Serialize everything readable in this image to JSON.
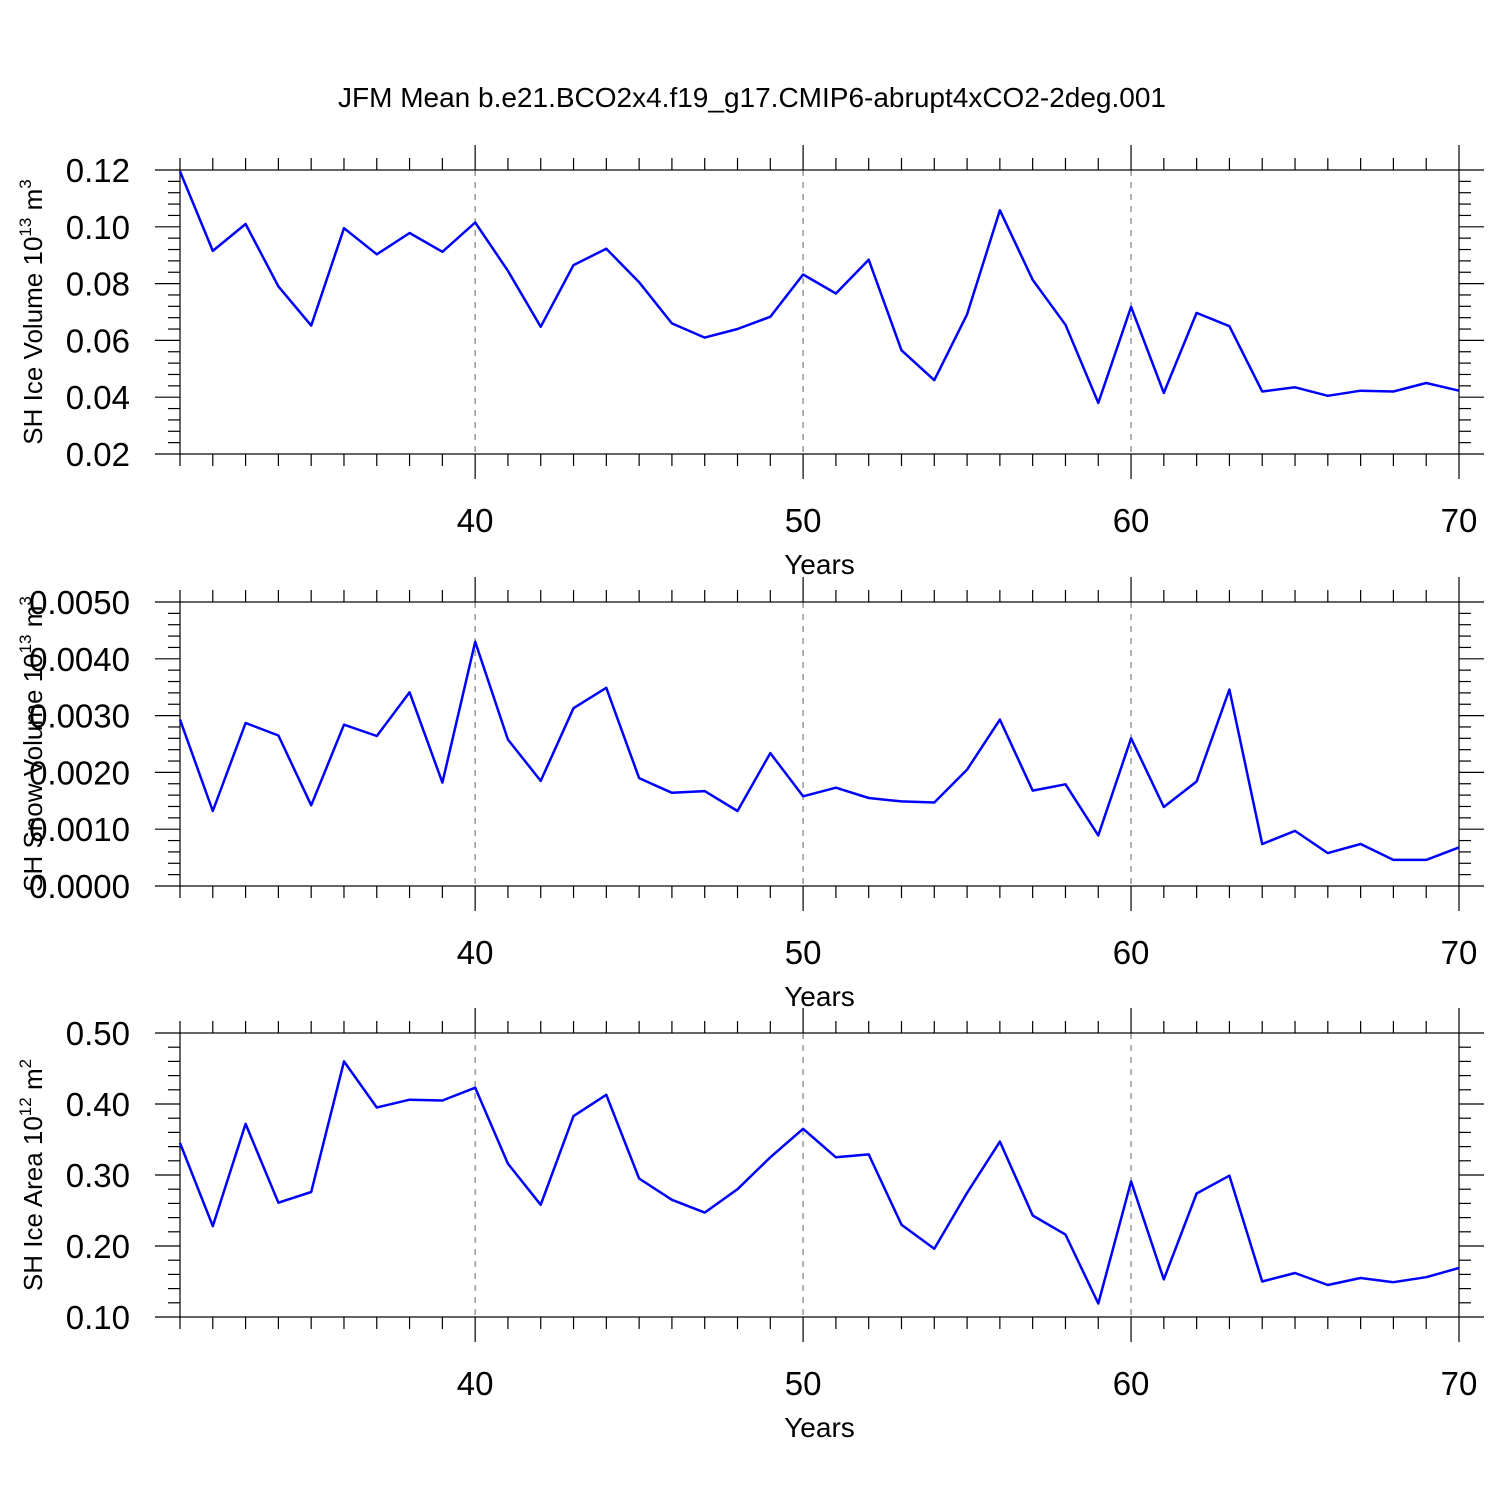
{
  "figure": {
    "title": "JFM Mean b.e21.BCO2x4.f19_g17.CMIP6-abrupt4xCO2-2deg.001",
    "series_color": "#0000ff",
    "grid_color": "#999999"
  },
  "chart_data": [
    {
      "type": "line",
      "name": "ice-volume",
      "ylabel": "SH Ice Volume 10",
      "ylabel_exp": "13",
      "ylabel_unit": " m",
      "ylabel_unit_exp": "3",
      "xlabel": "Years",
      "xlim": [
        31,
        70
      ],
      "ylim": [
        0.02,
        0.12
      ],
      "x_ticks": [
        40,
        50,
        60,
        70
      ],
      "y_ticks": [
        0.02,
        0.04,
        0.06,
        0.08,
        0.1,
        0.12
      ],
      "y_tick_labels": [
        "0.02",
        "0.04",
        "0.06",
        "0.08",
        "0.10",
        "0.12"
      ],
      "x_grid": [
        40,
        50,
        60
      ],
      "x": [
        31,
        32,
        33,
        34,
        35,
        36,
        37,
        38,
        39,
        40,
        41,
        42,
        43,
        44,
        45,
        46,
        47,
        48,
        49,
        50,
        51,
        52,
        53,
        54,
        55,
        56,
        57,
        58,
        59,
        60,
        61,
        62,
        63,
        64,
        65,
        66,
        67,
        68,
        69,
        70
      ],
      "values": [
        0.1195,
        0.0915,
        0.101,
        0.079,
        0.0652,
        0.0995,
        0.0903,
        0.0978,
        0.0912,
        0.1015,
        0.0845,
        0.0648,
        0.0865,
        0.0923,
        0.0805,
        0.066,
        0.061,
        0.064,
        0.0683,
        0.0832,
        0.0765,
        0.0884,
        0.0565,
        0.046,
        0.0692,
        0.1058,
        0.0813,
        0.0655,
        0.038,
        0.0718,
        0.0415,
        0.0697,
        0.065,
        0.042,
        0.0435,
        0.0405,
        0.0423,
        0.042,
        0.045,
        0.0423
      ]
    },
    {
      "type": "line",
      "name": "snow-volume",
      "ylabel": "SH Snow Volume 10",
      "ylabel_exp": "13",
      "ylabel_unit": " m",
      "ylabel_unit_exp": "3",
      "xlabel": "Years",
      "xlim": [
        31,
        70
      ],
      "ylim": [
        0.0,
        0.005
      ],
      "x_ticks": [
        40,
        50,
        60,
        70
      ],
      "y_ticks": [
        0.0,
        0.001,
        0.002,
        0.003,
        0.004,
        0.005
      ],
      "y_tick_labels": [
        "0.0000",
        "0.0010",
        "0.0020",
        "0.0030",
        "0.0040",
        "0.0050"
      ],
      "x_grid": [
        40,
        50,
        60
      ],
      "x": [
        31,
        32,
        33,
        34,
        35,
        36,
        37,
        38,
        39,
        40,
        41,
        42,
        43,
        44,
        45,
        46,
        47,
        48,
        49,
        50,
        51,
        52,
        53,
        54,
        55,
        56,
        57,
        58,
        59,
        60,
        61,
        62,
        63,
        64,
        65,
        66,
        67,
        68,
        69,
        70
      ],
      "values": [
        0.00293,
        0.00132,
        0.00287,
        0.00265,
        0.00142,
        0.00284,
        0.00264,
        0.00341,
        0.00182,
        0.0043,
        0.00258,
        0.00185,
        0.00313,
        0.00349,
        0.0019,
        0.00164,
        0.00167,
        0.00132,
        0.00234,
        0.00158,
        0.00173,
        0.00155,
        0.00149,
        0.00147,
        0.00205,
        0.00293,
        0.00168,
        0.00179,
        0.00089,
        0.0026,
        0.00139,
        0.00184,
        0.00346,
        0.00074,
        0.00097,
        0.00058,
        0.00074,
        0.00046,
        0.00046,
        0.00068
      ]
    },
    {
      "type": "line",
      "name": "ice-area",
      "ylabel": "SH Ice Area 10",
      "ylabel_exp": "12",
      "ylabel_unit": " m",
      "ylabel_unit_exp": "2",
      "xlabel": "Years",
      "xlim": [
        31,
        70
      ],
      "ylim": [
        0.1,
        0.5
      ],
      "x_ticks": [
        40,
        50,
        60,
        70
      ],
      "y_ticks": [
        0.1,
        0.2,
        0.3,
        0.4,
        0.5
      ],
      "y_tick_labels": [
        "0.10",
        "0.20",
        "0.30",
        "0.40",
        "0.50"
      ],
      "x_grid": [
        40,
        50,
        60
      ],
      "x": [
        31,
        32,
        33,
        34,
        35,
        36,
        37,
        38,
        39,
        40,
        41,
        42,
        43,
        44,
        45,
        46,
        47,
        48,
        49,
        50,
        51,
        52,
        53,
        54,
        55,
        56,
        57,
        58,
        59,
        60,
        61,
        62,
        63,
        64,
        65,
        66,
        67,
        68,
        69,
        70
      ],
      "values": [
        0.345,
        0.228,
        0.372,
        0.261,
        0.276,
        0.46,
        0.395,
        0.406,
        0.405,
        0.423,
        0.316,
        0.258,
        0.383,
        0.413,
        0.295,
        0.265,
        0.247,
        0.28,
        0.325,
        0.365,
        0.325,
        0.329,
        0.23,
        0.196,
        0.275,
        0.347,
        0.243,
        0.216,
        0.119,
        0.291,
        0.153,
        0.274,
        0.299,
        0.15,
        0.162,
        0.145,
        0.155,
        0.149,
        0.156,
        0.169
      ]
    }
  ]
}
